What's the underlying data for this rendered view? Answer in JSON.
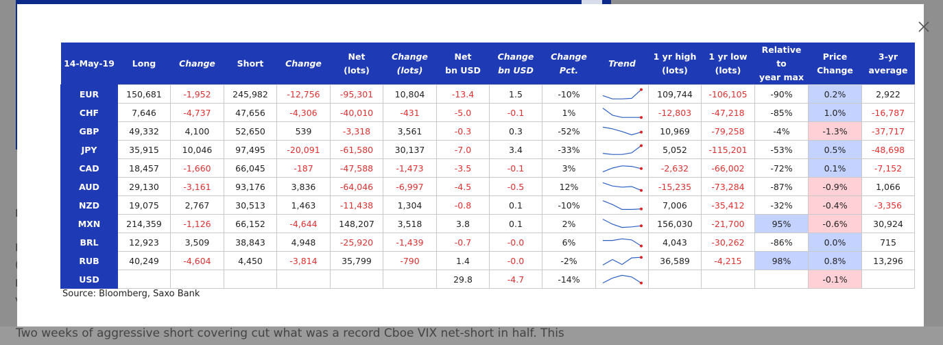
{
  "page": {
    "bottom_text": "Two weeks of aggressive short covering cut what was a record Cboe VIX net-short in half. This",
    "fragments": [
      "F",
      "L",
      "(",
      "F",
      "v"
    ]
  },
  "modal": {
    "close_icon": "close-icon",
    "source": "Source: Bloomberg, Saxo Bank"
  },
  "table": {
    "headers": [
      {
        "l1": "14-May-19",
        "l2": "",
        "italic": false
      },
      {
        "l1": "Long",
        "l2": "",
        "italic": false
      },
      {
        "l1": "Change",
        "l2": "",
        "italic": true
      },
      {
        "l1": "Short",
        "l2": "",
        "italic": false
      },
      {
        "l1": "Change",
        "l2": "",
        "italic": true
      },
      {
        "l1": "Net",
        "l2": "(lots)",
        "italic": false
      },
      {
        "l1": "Change",
        "l2": "(lots)",
        "italic": true
      },
      {
        "l1": "Net",
        "l2": "bn USD",
        "italic": false
      },
      {
        "l1": "Change",
        "l2": "bn USD",
        "italic": true
      },
      {
        "l1": "Change",
        "l2": "Pct.",
        "italic": true
      },
      {
        "l1": "Trend",
        "l2": "",
        "italic": true
      },
      {
        "l1": "1 yr high",
        "l2": "(lots)",
        "italic": false
      },
      {
        "l1": "1 yr low",
        "l2": "(lots)",
        "italic": false
      },
      {
        "l1": "Relative to",
        "l2": "year max",
        "italic": false
      },
      {
        "l1": "Price",
        "l2": "Change",
        "italic": false
      },
      {
        "l1": "3-yr",
        "l2": "average",
        "italic": false
      }
    ],
    "rows": [
      {
        "cur": "EUR",
        "long": "150,681",
        "chg": "-1,952",
        "short": "245,982",
        "chg2": "-12,756",
        "net": "-95,301",
        "netchg": "10,804",
        "netusd": "-13.4",
        "chgusd": "1.5",
        "pct": "-10%",
        "trend": [
          0.65,
          0.95,
          0.95,
          0.9,
          0.1
        ],
        "hi": "109,744",
        "lo": "-106,105",
        "rel": "-90%",
        "rel_bg": "",
        "price": "0.2%",
        "price_bg": "#c4d2ff",
        "avg": "2,922"
      },
      {
        "cur": "CHF",
        "long": "7,646",
        "chg": "-4,737",
        "short": "47,656",
        "chg2": "-4,306",
        "net": "-40,010",
        "netchg": "-431",
        "netusd": "-5.0",
        "chgusd": "-0.1",
        "pct": "1%",
        "trend": [
          0.1,
          0.75,
          0.95,
          0.95,
          0.95
        ],
        "hi": "-12,803",
        "lo": "-47,218",
        "rel": "-85%",
        "rel_bg": "",
        "price": "1.0%",
        "price_bg": "#c4d2ff",
        "avg": "-16,787"
      },
      {
        "cur": "GBP",
        "long": "49,332",
        "chg": "4,100",
        "short": "52,650",
        "chg2": "539",
        "net": "-3,318",
        "netchg": "3,561",
        "netusd": "-0.3",
        "chgusd": "0.3",
        "pct": "-52%",
        "trend": [
          0.15,
          0.3,
          0.55,
          0.85,
          0.6
        ],
        "hi": "10,969",
        "lo": "-79,258",
        "rel": "-4%",
        "rel_bg": "",
        "price": "-1.3%",
        "price_bg": "#ffd0d6",
        "avg": "-37,717"
      },
      {
        "cur": "JPY",
        "long": "35,915",
        "chg": "10,046",
        "short": "97,495",
        "chg2": "-20,091",
        "net": "-61,580",
        "netchg": "30,137",
        "netusd": "-7.0",
        "chgusd": "3.4",
        "pct": "-33%",
        "trend": [
          0.85,
          0.95,
          0.95,
          0.8,
          0.15
        ],
        "hi": "5,052",
        "lo": "-115,201",
        "rel": "-53%",
        "rel_bg": "",
        "price": "0.5%",
        "price_bg": "#c4d2ff",
        "avg": "-48,698"
      },
      {
        "cur": "CAD",
        "long": "18,457",
        "chg": "-1,660",
        "short": "66,045",
        "chg2": "-187",
        "net": "-47,588",
        "netchg": "-1,473",
        "netusd": "-3.5",
        "chgusd": "-0.1",
        "pct": "3%",
        "trend": [
          0.85,
          0.5,
          0.3,
          0.35,
          0.55
        ],
        "hi": "-2,632",
        "lo": "-66,002",
        "rel": "-72%",
        "rel_bg": "",
        "price": "0.1%",
        "price_bg": "#c4d2ff",
        "avg": "-7,152"
      },
      {
        "cur": "AUD",
        "long": "29,130",
        "chg": "-3,161",
        "short": "93,176",
        "chg2": "3,836",
        "net": "-64,046",
        "netchg": "-6,997",
        "netusd": "-4.5",
        "chgusd": "-0.5",
        "pct": "12%",
        "trend": [
          0.15,
          0.45,
          0.55,
          0.5,
          0.85
        ],
        "hi": "-15,235",
        "lo": "-73,284",
        "rel": "-87%",
        "rel_bg": "",
        "price": "-0.9%",
        "price_bg": "#ffd0d6",
        "avg": "1,066"
      },
      {
        "cur": "NZD",
        "long": "19,075",
        "chg": "2,767",
        "short": "30,513",
        "chg2": "1,463",
        "net": "-11,438",
        "netchg": "1,304",
        "netusd": "-0.8",
        "chgusd": "0.1",
        "pct": "-10%",
        "trend": [
          0.1,
          0.45,
          0.9,
          0.9,
          0.85
        ],
        "hi": "7,006",
        "lo": "-35,412",
        "rel": "-32%",
        "rel_bg": "",
        "price": "-0.4%",
        "price_bg": "#ffd0d6",
        "avg": "-3,356"
      },
      {
        "cur": "MXN",
        "long": "214,359",
        "chg": "-1,126",
        "short": "66,152",
        "chg2": "-4,644",
        "net": "148,207",
        "netchg": "3,518",
        "netusd": "3.8",
        "chgusd": "0.1",
        "pct": "2%",
        "trend": [
          0.1,
          0.55,
          0.85,
          0.8,
          0.7
        ],
        "hi": "156,030",
        "lo": "-21,700",
        "rel": "95%",
        "rel_bg": "#c4d2ff",
        "price": "-0.6%",
        "price_bg": "#ffd0d6",
        "avg": "30,924"
      },
      {
        "cur": "BRL",
        "long": "12,923",
        "chg": "3,509",
        "short": "38,843",
        "chg2": "4,948",
        "net": "-25,920",
        "netchg": "-1,439",
        "netusd": "-0.7",
        "chgusd": "-0.0",
        "pct": "6%",
        "trend": [
          0.35,
          0.35,
          0.2,
          0.3,
          0.85
        ],
        "hi": "4,043",
        "lo": "-30,262",
        "rel": "-86%",
        "rel_bg": "",
        "price": "0.0%",
        "price_bg": "#c4d2ff",
        "avg": "715"
      },
      {
        "cur": "RUB",
        "long": "40,249",
        "chg": "-4,604",
        "short": "4,450",
        "chg2": "-3,814",
        "net": "35,799",
        "netchg": "-790",
        "netusd": "1.4",
        "chgusd": "-0.0",
        "pct": "-2%",
        "trend": [
          0.9,
          0.4,
          0.85,
          0.25,
          0.2
        ],
        "hi": "36,589",
        "lo": "-4,215",
        "rel": "98%",
        "rel_bg": "#c4d2ff",
        "price": "0.8%",
        "price_bg": "#c4d2ff",
        "avg": "13,296"
      },
      {
        "cur": "USD",
        "long": "",
        "chg": "",
        "short": "",
        "chg2": "",
        "net": "",
        "netchg": "",
        "netusd": "29.8",
        "chgusd": "-4.7",
        "pct": "-14%",
        "trend": [
          0.85,
          0.4,
          0.15,
          0.3,
          0.85
        ],
        "hi": "",
        "lo": "",
        "rel": "",
        "rel_bg": "",
        "price": "-0.1%",
        "price_bg": "#ffd0d6",
        "avg": ""
      }
    ]
  }
}
